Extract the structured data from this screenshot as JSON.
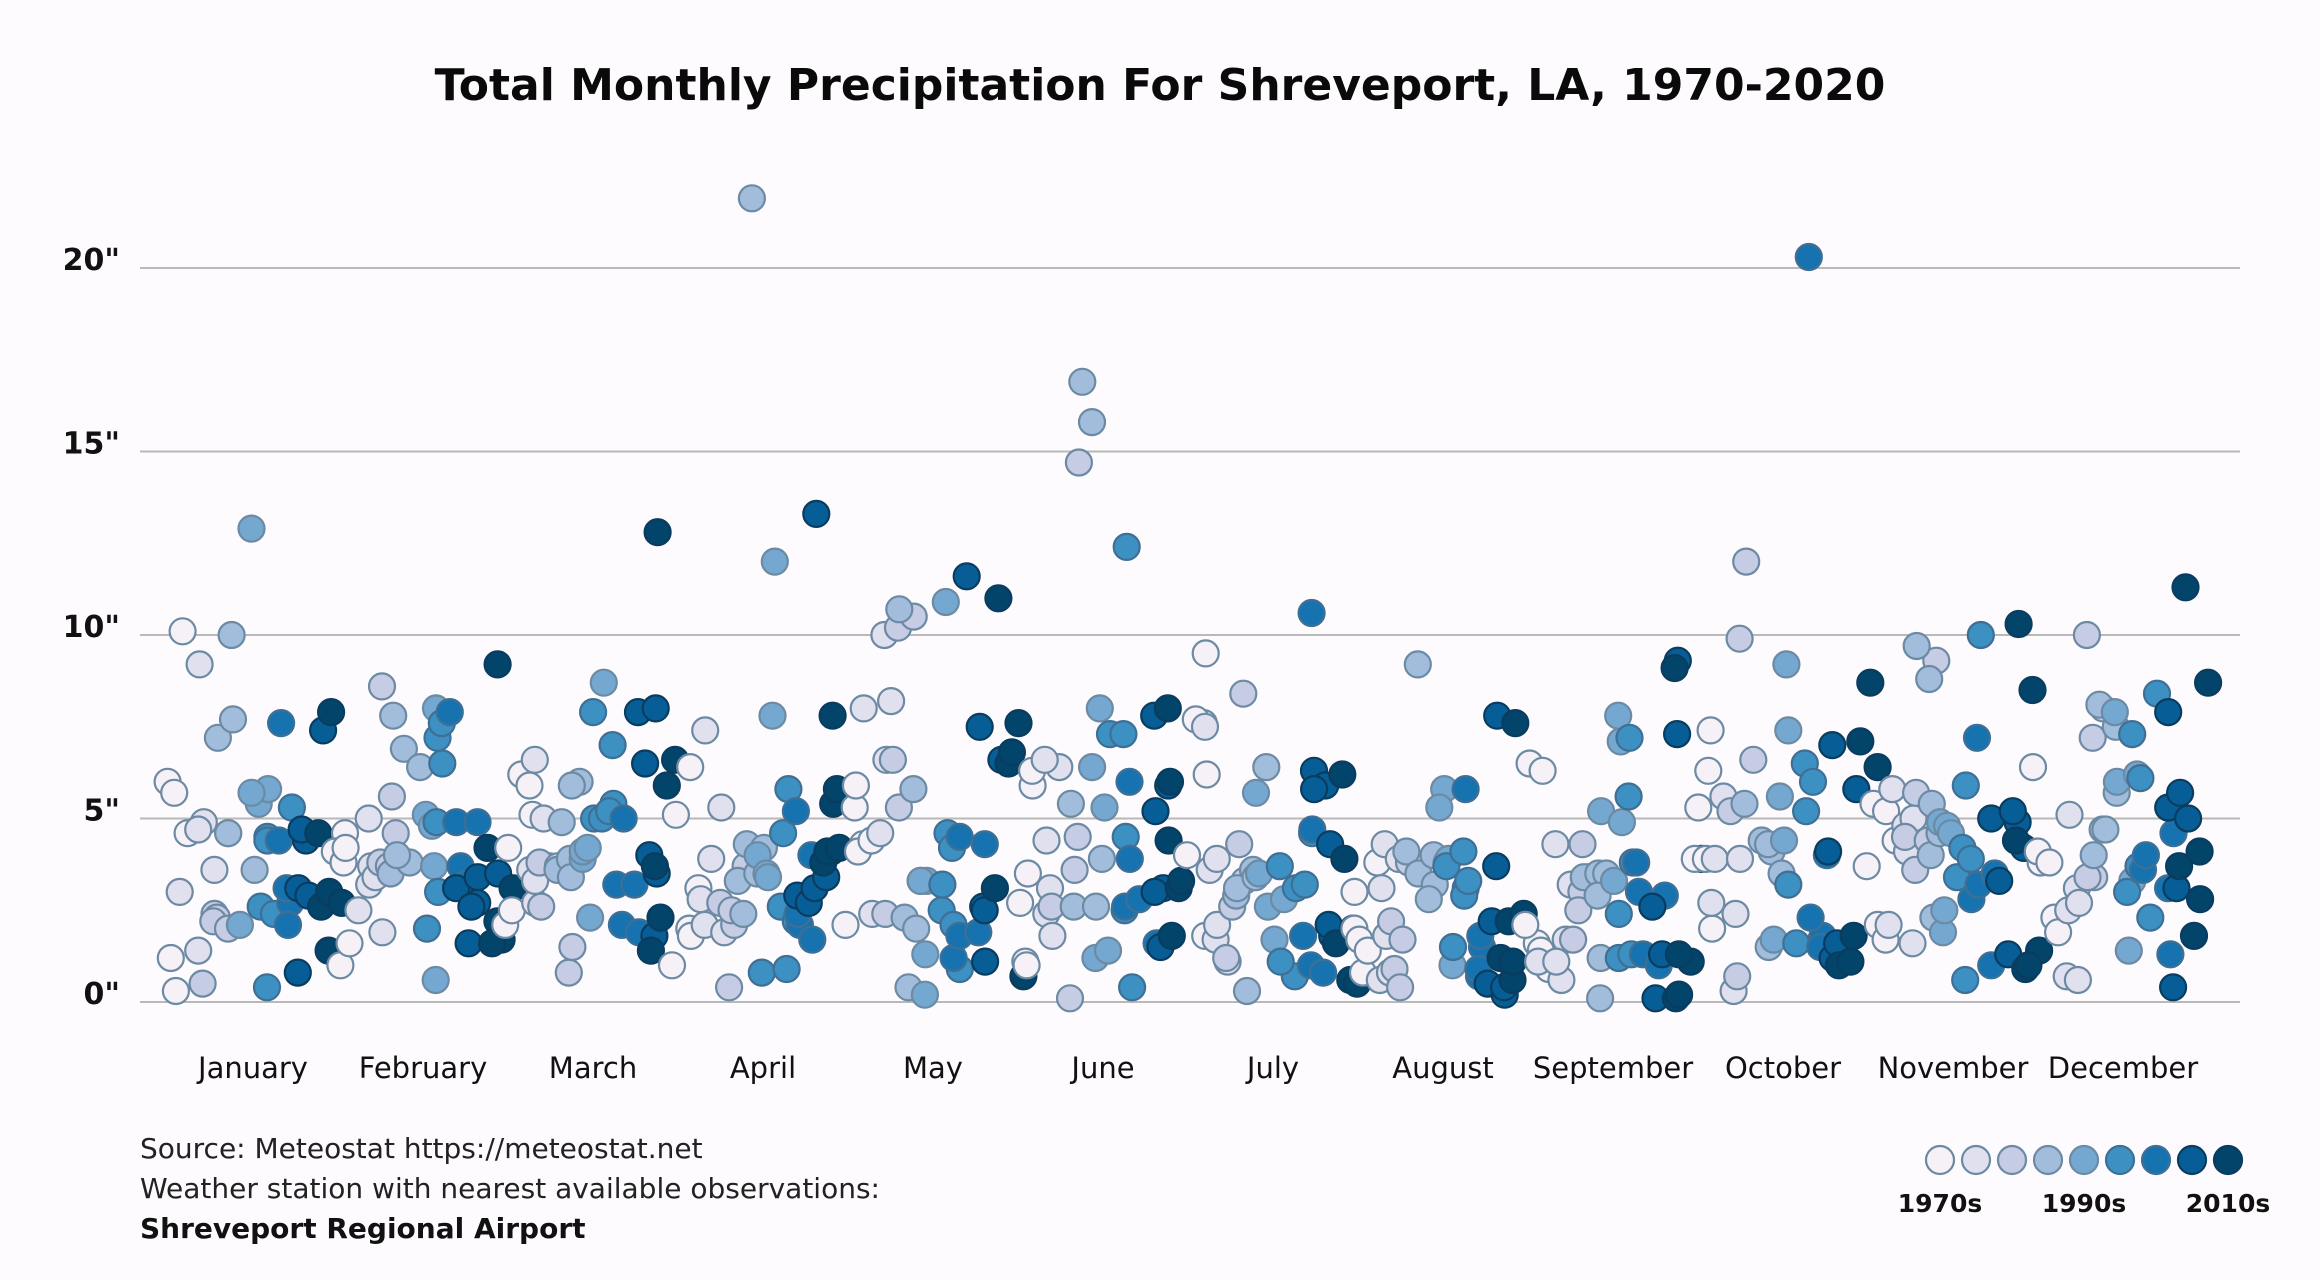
{
  "chart_data": {
    "type": "scatter",
    "title": "Total Monthly Precipitation For Shreveport, LA, 1970-2020",
    "xlabel": "",
    "ylabel": "",
    "ylim": [
      0,
      20
    ],
    "yticks": [
      0,
      5,
      10,
      15,
      20
    ],
    "ytick_labels": [
      "0\"",
      "5\"",
      "10\"",
      "15\"",
      "20\""
    ],
    "grid": true,
    "categories": [
      "January",
      "February",
      "March",
      "April",
      "May",
      "June",
      "July",
      "August",
      "September",
      "October",
      "November",
      "December"
    ],
    "years": [
      1970,
      2020
    ],
    "series": [
      {
        "name": "January",
        "values": [
          1.2,
          0.3,
          6.0,
          5.7,
          10.1,
          4.6,
          3.0,
          4.9,
          9.2,
          4.7,
          1.4,
          3.6,
          2.4,
          0.5,
          2.3,
          2.2,
          2.0,
          7.2,
          10.0,
          7.7,
          4.6,
          4.6,
          3.6,
          5.4,
          2.1,
          12.9,
          5.8,
          5.7,
          2.6,
          4.5,
          2.4,
          0.4,
          4.4,
          5.3,
          7.6,
          4.4,
          2.7,
          2.1,
          3.1,
          4.4,
          3.1,
          4.7,
          0.8,
          7.4,
          2.9,
          1.4,
          2.6,
          4.6,
          7.9,
          3.0,
          2.7
        ]
      },
      {
        "name": "February",
        "values": [
          4.6,
          4.1,
          1.0,
          1.6,
          3.8,
          4.2,
          2.5,
          5.0,
          3.7,
          1.9,
          3.2,
          3.4,
          3.8,
          8.6,
          4.6,
          3.7,
          5.6,
          3.5,
          7.8,
          3.8,
          4.0,
          6.9,
          6.4,
          5.1,
          4.8,
          3.7,
          0.6,
          8.0,
          4.9,
          7.2,
          2.0,
          3.0,
          6.5,
          7.6,
          7.9,
          3.7,
          3.2,
          4.9,
          4.9,
          3.1,
          1.6,
          3.4,
          2.7,
          2.6,
          3.5,
          4.2,
          1.7,
          2.2,
          9.2,
          1.6,
          3.1
        ]
      },
      {
        "name": "March",
        "values": [
          6.2,
          4.2,
          2.1,
          2.5,
          5.9,
          5.1,
          6.6,
          5.0,
          3.6,
          3.7,
          2.7,
          3.3,
          3.8,
          2.6,
          3.7,
          0.8,
          1.5,
          3.6,
          3.9,
          4.9,
          3.4,
          6.0,
          5.9,
          3.9,
          4.1,
          4.2,
          8.7,
          2.3,
          5.0,
          7.9,
          7.0,
          5.0,
          5.4,
          5.2,
          2.1,
          5.0,
          3.2,
          1.9,
          3.2,
          6.5,
          7.9,
          3.5,
          1.8,
          8.0,
          4.0,
          3.7,
          1.4,
          6.6,
          12.8,
          2.3,
          5.9
        ]
      },
      {
        "name": "April",
        "values": [
          5.1,
          1.0,
          6.4,
          2.0,
          1.8,
          3.1,
          3.9,
          2.1,
          7.4,
          2.8,
          1.9,
          5.3,
          2.7,
          2.1,
          2.5,
          0.4,
          3.7,
          4.3,
          3.3,
          2.4,
          21.9,
          3.5,
          4.2,
          4.0,
          7.8,
          3.5,
          12.0,
          3.4,
          0.8,
          5.8,
          2.6,
          0.9,
          4.6,
          2.2,
          2.1,
          5.2,
          2.4,
          1.7,
          4.0,
          2.9,
          2.7,
          3.1,
          4.1,
          3.4,
          13.3,
          5.4,
          3.8,
          4.1,
          4.2,
          5.8,
          7.8
        ]
      },
      {
        "name": "May",
        "values": [
          4.3,
          5.3,
          2.1,
          4.1,
          5.9,
          4.4,
          8.0,
          4.6,
          2.4,
          8.2,
          6.6,
          10.0,
          5.3,
          2.4,
          6.6,
          10.2,
          10.5,
          0.4,
          10.7,
          2.3,
          2.0,
          5.8,
          3.3,
          3.3,
          1.3,
          3.3,
          0.2,
          10.9,
          2.5,
          4.6,
          0.9,
          3.2,
          2.1,
          4.2,
          4.5,
          1.2,
          1.8,
          1.9,
          4.3,
          11.6,
          2.6,
          7.5,
          2.5,
          1.1,
          6.6,
          11.0,
          3.1,
          6.5,
          7.6,
          0.7,
          6.8
        ]
      },
      {
        "name": "June",
        "values": [
          5.9,
          6.3,
          1.1,
          2.7,
          1.0,
          3.5,
          4.4,
          2.4,
          6.4,
          6.6,
          3.1,
          1.8,
          2.6,
          3.6,
          0.1,
          4.5,
          14.7,
          5.4,
          16.9,
          2.6,
          15.8,
          3.9,
          2.6,
          6.4,
          1.2,
          5.3,
          1.4,
          8.0,
          7.3,
          2.5,
          4.5,
          7.3,
          12.4,
          0.4,
          6.0,
          2.6,
          3.9,
          2.8,
          1.6,
          5.2,
          3.1,
          7.8,
          5.9,
          1.5,
          3.0,
          3.1,
          8.0,
          4.4,
          1.8,
          6.0,
          3.3
        ]
      },
      {
        "name": "July",
        "values": [
          4.0,
          6.2,
          9.5,
          7.6,
          1.8,
          7.7,
          3.6,
          7.5,
          3.9,
          1.7,
          2.1,
          1.1,
          2.6,
          1.2,
          4.3,
          3.3,
          8.4,
          2.9,
          3.1,
          3.6,
          3.4,
          0.3,
          6.4,
          5.7,
          3.5,
          2.6,
          1.7,
          2.8,
          0.7,
          3.1,
          1.1,
          3.7,
          3.2,
          4.6,
          10.6,
          4.7,
          1.0,
          0.8,
          1.8,
          6.3,
          5.9,
          5.8,
          1.8,
          2.1,
          4.3,
          0.6,
          3.9,
          1.6,
          2.0,
          0.5,
          6.2
        ]
      },
      {
        "name": "August",
        "values": [
          2.0,
          3.0,
          0.8,
          1.7,
          1.4,
          3.8,
          3.1,
          4.3,
          3.9,
          0.6,
          0.8,
          1.8,
          2.2,
          0.9,
          1.7,
          0.4,
          3.8,
          4.1,
          9.2,
          3.5,
          3.2,
          2.8,
          4.0,
          3.8,
          5.8,
          5.3,
          1.0,
          3.9,
          3.7,
          4.1,
          1.5,
          3.1,
          2.9,
          3.3,
          1.5,
          5.8,
          0.7,
          1.8,
          0.9,
          3.7,
          7.8,
          0.5,
          0.2,
          2.2,
          0.4,
          7.6,
          1.2,
          0.6,
          1.1,
          2.2,
          2.4
        ]
      },
      {
        "name": "September",
        "values": [
          1.6,
          6.5,
          2.1,
          1.4,
          6.3,
          0.9,
          1.1,
          0.6,
          4.3,
          1.7,
          3.2,
          1.1,
          4.3,
          3.0,
          3.4,
          1.7,
          2.5,
          3.4,
          1.2,
          3.5,
          3.5,
          2.9,
          0.1,
          3.3,
          5.2,
          7.1,
          7.8,
          4.9,
          2.4,
          7.2,
          1.2,
          1.3,
          3.8,
          5.6,
          1.3,
          3.0,
          3.8,
          2.9,
          1.0,
          2.6,
          0.1,
          7.3,
          1.3,
          9.3,
          0.2,
          0.1,
          1.1,
          9.1,
          1.3,
          0.2,
          3.9
        ]
      },
      {
        "name": "October",
        "values": [
          7.4,
          6.3,
          3.9,
          5.3,
          3.9,
          2.0,
          0.3,
          2.7,
          3.9,
          5.6,
          2.4,
          3.9,
          5.2,
          0.7,
          12.0,
          9.9,
          6.6,
          5.4,
          4.4,
          1.5,
          4.1,
          3.5,
          4.3,
          9.2,
          4.4,
          7.4,
          1.7,
          5.6,
          3.2,
          1.6,
          5.2,
          6.5,
          6.0,
          1.7,
          1.8,
          20.3,
          2.3,
          4.0,
          1.5,
          1.1,
          4.1,
          1.2,
          7.0,
          1.6,
          5.8,
          7.1,
          1.0,
          1.1,
          1.8,
          8.7,
          6.4
        ]
      },
      {
        "name": "November",
        "values": [
          2.1,
          3.7,
          5.4,
          5.2,
          1.7,
          4.4,
          5.8,
          2.1,
          4.8,
          4.1,
          1.6,
          5.0,
          3.6,
          5.7,
          4.5,
          4.4,
          9.3,
          9.7,
          8.8,
          5.4,
          2.3,
          4.0,
          4.6,
          4.9,
          1.9,
          2.5,
          4.8,
          4.6,
          3.4,
          5.9,
          0.6,
          4.2,
          10.0,
          3.9,
          2.8,
          7.2,
          3.2,
          3.5,
          1.0,
          3.3,
          5.0,
          1.3,
          4.9,
          4.2,
          5.2,
          10.3,
          0.9,
          4.4,
          1.4,
          8.5,
          1.0
        ]
      },
      {
        "name": "December",
        "values": [
          3.8,
          6.4,
          4.1,
          2.3,
          1.9,
          3.8,
          2.5,
          5.1,
          3.1,
          0.7,
          0.6,
          2.7,
          10.0,
          3.4,
          7.2,
          3.4,
          8.0,
          4.7,
          4.7,
          7.5,
          4.0,
          8.1,
          5.7,
          1.4,
          3.3,
          6.0,
          7.9,
          6.2,
          3.0,
          6.1,
          2.3,
          7.3,
          3.7,
          8.4,
          3.6,
          4.0,
          3.1,
          1.3,
          4.6,
          5.3,
          0.4,
          5.7,
          7.9,
          5.0,
          3.1,
          3.7,
          2.8,
          4.1,
          11.3,
          1.8,
          8.7
        ]
      }
    ],
    "legend": {
      "placement": "bottom-right",
      "labels": [
        "1970s",
        "1990s",
        "2010s"
      ],
      "color_bins": [
        "#f6f1f7",
        "#e1e0ef",
        "#c6cce4",
        "#a2bddb",
        "#74a8d0",
        "#3d90c2",
        "#1673b0",
        "#075e96",
        "#03446a"
      ]
    }
  },
  "footer": {
    "source": "Source: Meteostat https://meteostat.net",
    "station_caption": "Weather station with nearest available observations:",
    "station_name": "Shreveport Regional Airport"
  }
}
